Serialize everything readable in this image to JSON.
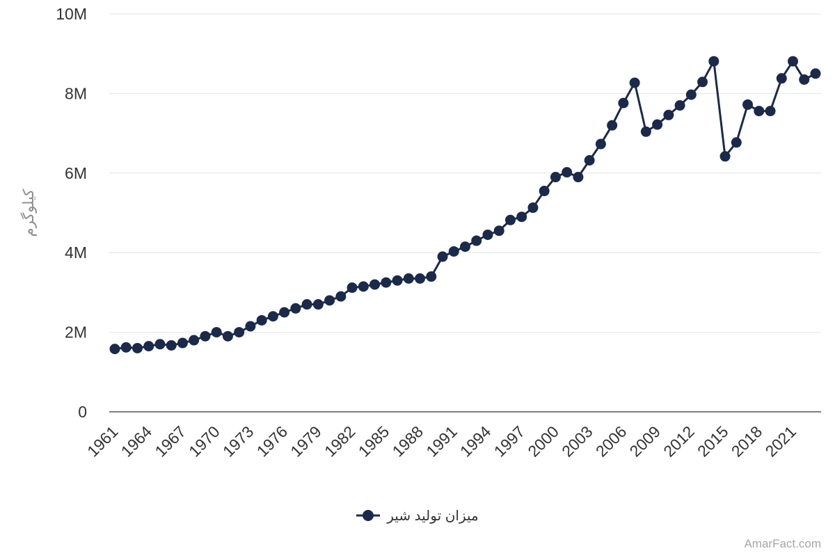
{
  "chart_data": {
    "type": "line",
    "title": "",
    "xlabel": "",
    "ylabel": "کیلوگرم",
    "x": [
      1961,
      1962,
      1963,
      1964,
      1965,
      1966,
      1967,
      1968,
      1969,
      1970,
      1971,
      1972,
      1973,
      1974,
      1975,
      1976,
      1977,
      1978,
      1979,
      1980,
      1981,
      1982,
      1983,
      1984,
      1985,
      1986,
      1987,
      1988,
      1989,
      1990,
      1991,
      1992,
      1993,
      1994,
      1995,
      1996,
      1997,
      1998,
      1999,
      2000,
      2001,
      2002,
      2003,
      2004,
      2005,
      2006,
      2007,
      2008,
      2009,
      2010,
      2011,
      2012,
      2013,
      2014,
      2015,
      2016,
      2017,
      2018,
      2019,
      2020,
      2021,
      2022,
      2023
    ],
    "x_ticks": [
      "1961",
      "1964",
      "1967",
      "1970",
      "1973",
      "1976",
      "1979",
      "1982",
      "1985",
      "1988",
      "1991",
      "1994",
      "1997",
      "2000",
      "2003",
      "2006",
      "2009",
      "2012",
      "2015",
      "2018",
      "2021"
    ],
    "y_ticks": [
      "0",
      "2M",
      "4M",
      "6M",
      "8M",
      "10M"
    ],
    "ylim": [
      0,
      10000000
    ],
    "grid": true,
    "legend_position": "bottom",
    "series": [
      {
        "name": "میزان تولید شیر",
        "color": "#1b2a4a",
        "values": [
          1580000,
          1620000,
          1600000,
          1650000,
          1700000,
          1670000,
          1730000,
          1800000,
          1900000,
          2000000,
          1900000,
          2000000,
          2150000,
          2300000,
          2400000,
          2500000,
          2600000,
          2700000,
          2700000,
          2800000,
          2900000,
          3120000,
          3150000,
          3200000,
          3250000,
          3300000,
          3350000,
          3350000,
          3400000,
          3900000,
          4030000,
          4150000,
          4300000,
          4450000,
          4550000,
          4820000,
          4900000,
          5130000,
          5550000,
          5900000,
          6020000,
          5900000,
          6320000,
          6730000,
          7200000,
          7760000,
          8270000,
          7040000,
          7220000,
          7460000,
          7700000,
          7970000,
          8290000,
          8810000,
          6420000,
          6770000,
          7720000,
          7560000,
          7560000,
          8380000,
          8810000,
          8350000,
          8500000
        ]
      }
    ]
  },
  "watermark": "AmarFact.com"
}
